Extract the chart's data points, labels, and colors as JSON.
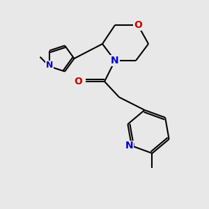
{
  "background_color": "#e8e8e8",
  "bond_color": "#000000",
  "N_color": "#0000cc",
  "O_color": "#cc0000",
  "lw": 1.5,
  "fs": 10,
  "figsize": [
    3.0,
    3.0
  ],
  "dpi": 100,
  "xlim": [
    0,
    10
  ],
  "ylim": [
    0,
    10
  ]
}
